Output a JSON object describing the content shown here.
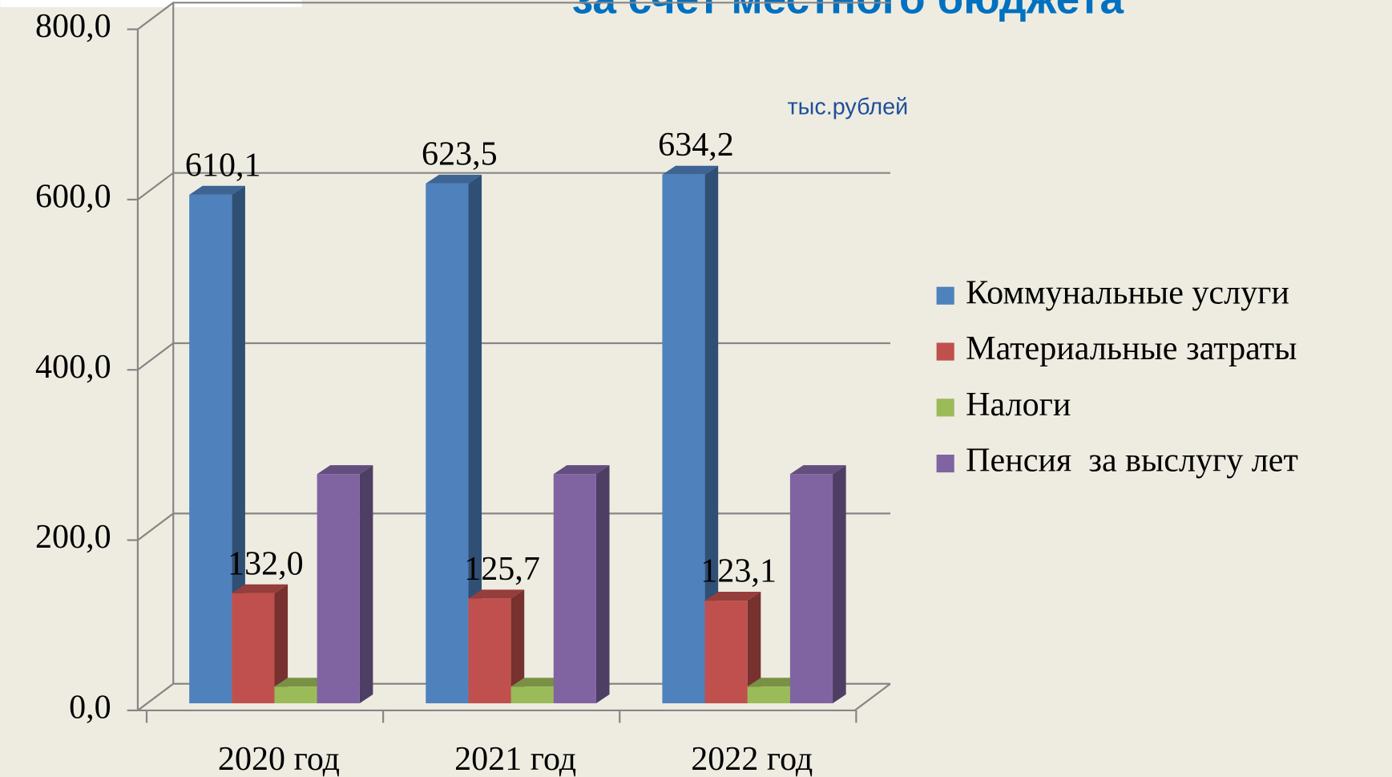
{
  "chart_data": {
    "type": "bar3d",
    "title": "за счет местного бюджета",
    "unit": "тыс.рублей",
    "categories": [
      "2020 год",
      "2021 год",
      "2022 год"
    ],
    "series": [
      {
        "name": "Коммунальные услуги",
        "color": "#4f81bd",
        "values": [
          610.1,
          623.5,
          634.2
        ],
        "value_labels": [
          "610,1",
          "623,5",
          "634,2"
        ]
      },
      {
        "name": "Материальные затраты",
        "color": "#c0504d",
        "values": [
          132.0,
          125.7,
          123.1
        ],
        "value_labels": [
          "132,0",
          "125,7",
          "123,1"
        ]
      },
      {
        "name": "Налоги",
        "color": "#9bbb59",
        "values": [
          20,
          20,
          20
        ]
      },
      {
        "name": "Пенсия  за выслугу лет",
        "color": "#8064a2",
        "values": [
          275,
          275,
          275
        ]
      }
    ],
    "ylim": [
      0,
      800
    ],
    "yticks": [
      {
        "value": 0,
        "label": "0,0"
      },
      {
        "value": 200,
        "label": "200,0"
      },
      {
        "value": 400,
        "label": "400,0"
      },
      {
        "value": 600,
        "label": "600,0"
      },
      {
        "value": 800,
        "label": "800,0"
      }
    ],
    "grid": true,
    "legend": "right"
  }
}
